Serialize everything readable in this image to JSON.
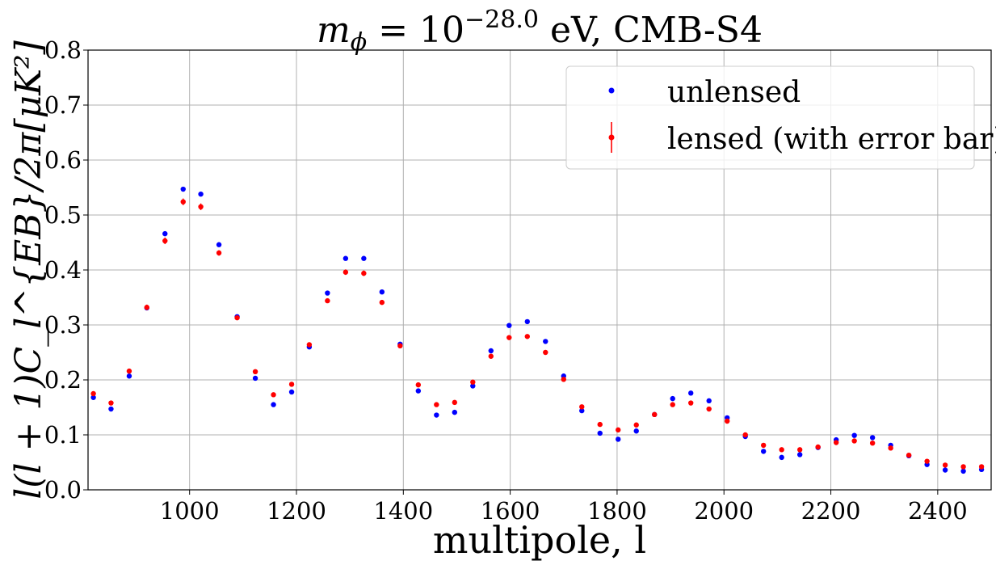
{
  "chart_data": {
    "type": "scatter",
    "title": "m_ϕ = 10^{−28.0} eV, CMB-S4",
    "title_parts": {
      "base": "m",
      "sub": "ϕ",
      "eq": " = 10",
      "exp": "−28.0",
      "rest": " eV, CMB-S4"
    },
    "xlabel": "multipole, l",
    "ylabel": "l(l + 1)C_l^{EB}/2π[μK²]",
    "xlim": [
      810,
      2500
    ],
    "ylim": [
      0.0,
      0.8
    ],
    "grid": true,
    "legend_position": "top-right",
    "x_ticks": [
      {
        "value": 1000,
        "label": "1000"
      },
      {
        "value": 1200,
        "label": "1200"
      },
      {
        "value": 1400,
        "label": "1400"
      },
      {
        "value": 1600,
        "label": "1600"
      },
      {
        "value": 1800,
        "label": "1800"
      },
      {
        "value": 2000,
        "label": "2000"
      },
      {
        "value": 2200,
        "label": "2200"
      },
      {
        "value": 2400,
        "label": "2400"
      }
    ],
    "y_ticks": [
      {
        "value": 0.0,
        "label": "0.0"
      },
      {
        "value": 0.1,
        "label": "0.1"
      },
      {
        "value": 0.2,
        "label": "0.2"
      },
      {
        "value": 0.3,
        "label": "0.3"
      },
      {
        "value": 0.4,
        "label": "0.4"
      },
      {
        "value": 0.5,
        "label": "0.5"
      },
      {
        "value": 0.6,
        "label": "0.6"
      },
      {
        "value": 0.7,
        "label": "0.7"
      },
      {
        "value": 0.8,
        "label": "0.8"
      }
    ],
    "x": [
      820,
      853,
      887,
      920,
      954,
      988,
      1021,
      1055,
      1089,
      1123,
      1157,
      1191,
      1224,
      1258,
      1292,
      1326,
      1360,
      1394,
      1428,
      1462,
      1496,
      1530,
      1564,
      1598,
      1632,
      1666,
      1700,
      1734,
      1768,
      1802,
      1836,
      1870,
      1904,
      1938,
      1972,
      2006,
      2040,
      2074,
      2108,
      2142,
      2176,
      2210,
      2244,
      2278,
      2312,
      2346,
      2380,
      2414,
      2448,
      2482
    ],
    "series": [
      {
        "name": "unlensed",
        "color": "#0000ff",
        "error_bars": false,
        "values": [
          0.168,
          0.147,
          0.207,
          0.331,
          0.466,
          0.547,
          0.538,
          0.446,
          0.315,
          0.203,
          0.155,
          0.178,
          0.26,
          0.358,
          0.421,
          0.421,
          0.36,
          0.265,
          0.18,
          0.136,
          0.141,
          0.189,
          0.253,
          0.299,
          0.306,
          0.27,
          0.207,
          0.144,
          0.103,
          0.092,
          0.107,
          0.137,
          0.166,
          0.176,
          0.162,
          0.131,
          0.097,
          0.07,
          0.059,
          0.064,
          0.077,
          0.091,
          0.099,
          0.095,
          0.081,
          0.062,
          0.046,
          0.036,
          0.034,
          0.037
        ]
      },
      {
        "name": "lensed (with error bar)",
        "color": "#ff0000",
        "error_bars": true,
        "values": [
          0.175,
          0.158,
          0.216,
          0.332,
          0.453,
          0.524,
          0.515,
          0.431,
          0.313,
          0.215,
          0.173,
          0.192,
          0.264,
          0.344,
          0.396,
          0.394,
          0.341,
          0.262,
          0.191,
          0.155,
          0.159,
          0.196,
          0.243,
          0.277,
          0.279,
          0.25,
          0.201,
          0.151,
          0.119,
          0.109,
          0.118,
          0.137,
          0.155,
          0.158,
          0.147,
          0.125,
          0.1,
          0.081,
          0.073,
          0.073,
          0.078,
          0.086,
          0.089,
          0.085,
          0.076,
          0.063,
          0.052,
          0.045,
          0.042,
          0.042
        ],
        "errors": [
          0.004,
          0.004,
          0.004,
          0.005,
          0.006,
          0.006,
          0.006,
          0.005,
          0.004,
          0.004,
          0.003,
          0.003,
          0.004,
          0.004,
          0.005,
          0.005,
          0.004,
          0.004,
          0.003,
          0.003,
          0.003,
          0.003,
          0.004,
          0.004,
          0.004,
          0.004,
          0.003,
          0.003,
          0.003,
          0.003,
          0.003,
          0.003,
          0.003,
          0.003,
          0.003,
          0.003,
          0.002,
          0.002,
          0.002,
          0.002,
          0.002,
          0.002,
          0.002,
          0.002,
          0.002,
          0.002,
          0.002,
          0.002,
          0.002,
          0.002
        ]
      }
    ]
  }
}
